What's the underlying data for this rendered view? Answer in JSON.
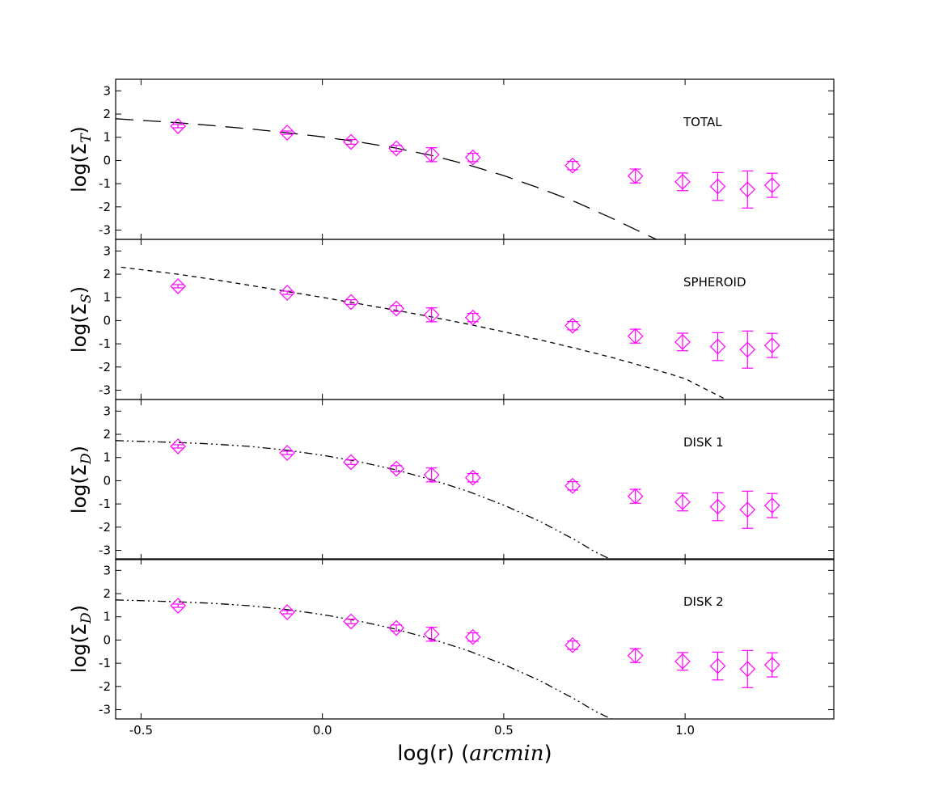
{
  "chart_data": {
    "type": "scatter",
    "xlabel": "log(r) (arcmin)",
    "xlabel_parts": {
      "prefix": "log(r) (",
      "italic": "arcmin",
      "suffix": ")"
    },
    "xlim": [
      -0.57,
      1.41
    ],
    "xticks": [
      {
        "value": -0.5,
        "label": "-0.5"
      },
      {
        "value": 0.0,
        "label": "0.0"
      },
      {
        "value": 0.5,
        "label": "0.5"
      },
      {
        "value": 1.0,
        "label": "1.0"
      }
    ],
    "ylim": [
      -3.4,
      3.5
    ],
    "yticks": [
      {
        "value": 3,
        "label": "3"
      },
      {
        "value": 2,
        "label": "2"
      },
      {
        "value": 1,
        "label": "1"
      },
      {
        "value": 0,
        "label": "0"
      },
      {
        "value": -1,
        "label": "-1"
      },
      {
        "value": -2,
        "label": "-2"
      },
      {
        "value": -3,
        "label": "-3"
      }
    ],
    "grid": false,
    "colors": {
      "data": "#ff00ff",
      "model": "#000000",
      "axes": "#000000"
    },
    "observed": {
      "marker": "diamond",
      "x": [
        -0.398,
        -0.097,
        0.079,
        0.204,
        0.301,
        0.415,
        0.69,
        0.863,
        0.993,
        1.09,
        1.172,
        1.24
      ],
      "y": [
        1.48,
        1.2,
        0.8,
        0.52,
        0.25,
        0.13,
        -0.22,
        -0.67,
        -0.92,
        -1.12,
        -1.25,
        -1.07
      ],
      "err": [
        0.07,
        0.07,
        0.1,
        0.13,
        0.3,
        0.18,
        0.18,
        0.3,
        0.38,
        0.6,
        0.8,
        0.52
      ]
    },
    "panels": [
      {
        "label": "TOTAL",
        "ylabel": "log(ΣT)",
        "ylabel_base": "log(Σ",
        "ylabel_sub": "T",
        "ylabel_close": ")",
        "model_style": "long-dash",
        "model_x": [
          -0.57,
          -0.4,
          -0.3,
          -0.2,
          -0.1,
          0.0,
          0.1,
          0.2,
          0.3,
          0.4,
          0.5,
          0.6,
          0.7,
          0.8,
          0.9,
          0.935
        ],
        "model_y": [
          1.8,
          1.63,
          1.5,
          1.36,
          1.2,
          1.02,
          0.8,
          0.54,
          0.22,
          -0.18,
          -0.65,
          -1.2,
          -1.8,
          -2.5,
          -3.25,
          -3.5
        ]
      },
      {
        "label": "SPHEROID",
        "ylabel": "log(ΣS)",
        "ylabel_base": "log(Σ",
        "ylabel_sub": "S",
        "ylabel_close": ")",
        "model_style": "short-dash",
        "model_x": [
          -0.555,
          -0.4,
          -0.3,
          -0.2,
          -0.1,
          0.0,
          0.1,
          0.2,
          0.3,
          0.4,
          0.5,
          0.6,
          0.7,
          0.8,
          0.9,
          1.0,
          1.1,
          1.125
        ],
        "model_y": [
          2.3,
          2.0,
          1.77,
          1.52,
          1.26,
          1.0,
          0.73,
          0.45,
          0.16,
          -0.15,
          -0.48,
          -0.83,
          -1.2,
          -1.6,
          -2.03,
          -2.5,
          -3.3,
          -3.5
        ]
      },
      {
        "label": "DISK 1",
        "ylabel": "log(ΣD)",
        "ylabel_base": "log(Σ",
        "ylabel_sub": "D",
        "ylabel_close": ")",
        "model_style": "dash-dot-dot",
        "model_x": [
          -0.57,
          -0.4,
          -0.3,
          -0.2,
          -0.1,
          0.0,
          0.1,
          0.2,
          0.3,
          0.4,
          0.5,
          0.6,
          0.7,
          0.75,
          0.81
        ],
        "model_y": [
          1.73,
          1.65,
          1.58,
          1.48,
          1.32,
          1.1,
          0.82,
          0.48,
          0.05,
          -0.45,
          -1.05,
          -1.75,
          -2.58,
          -3.05,
          -3.5
        ]
      },
      {
        "label": "DISK 2",
        "ylabel": "log(ΣD)",
        "ylabel_base": "log(Σ",
        "ylabel_sub": "D",
        "ylabel_close": ")",
        "model_style": "dash-dot-dot",
        "model_x": [
          -0.57,
          -0.4,
          -0.3,
          -0.2,
          -0.1,
          0.0,
          0.1,
          0.2,
          0.3,
          0.4,
          0.5,
          0.6,
          0.7,
          0.75,
          0.81
        ],
        "model_y": [
          1.73,
          1.65,
          1.58,
          1.48,
          1.32,
          1.1,
          0.82,
          0.48,
          0.05,
          -0.45,
          -1.05,
          -1.75,
          -2.58,
          -3.05,
          -3.5
        ]
      }
    ]
  }
}
